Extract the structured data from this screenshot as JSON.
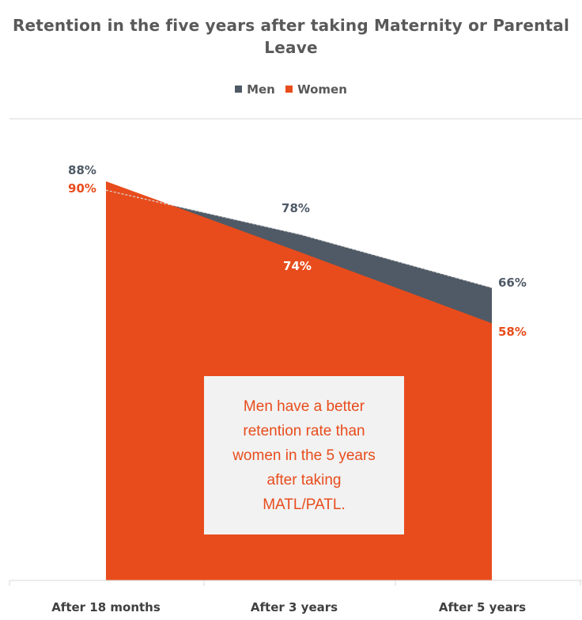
{
  "chart_data": {
    "type": "area",
    "title": "Retention in the five years after taking Maternity or Parental Leave",
    "categories": [
      "After 18 months",
      "After 3 years",
      "After 5 years"
    ],
    "series": [
      {
        "name": "Men",
        "values": [
          88,
          78,
          66
        ],
        "labels": [
          "88%",
          "78%",
          "66%"
        ],
        "color": "#4f5a66"
      },
      {
        "name": "Women",
        "values": [
          90,
          74,
          58
        ],
        "labels": [
          "90%",
          "74%",
          "58%"
        ],
        "color": "#e84c1c"
      }
    ],
    "ylim": [
      0,
      100
    ],
    "legend_position": "top-center",
    "grid": false
  },
  "legend": {
    "men": "Men",
    "women": "Women"
  },
  "annotation": {
    "text": "Men have a better\nretention rate than\nwomen in the 5 years\nafter taking\nMATL/PATL."
  },
  "colors": {
    "men": "#4f5a66",
    "women": "#e84c1c",
    "axis": "#d9d9d9"
  }
}
